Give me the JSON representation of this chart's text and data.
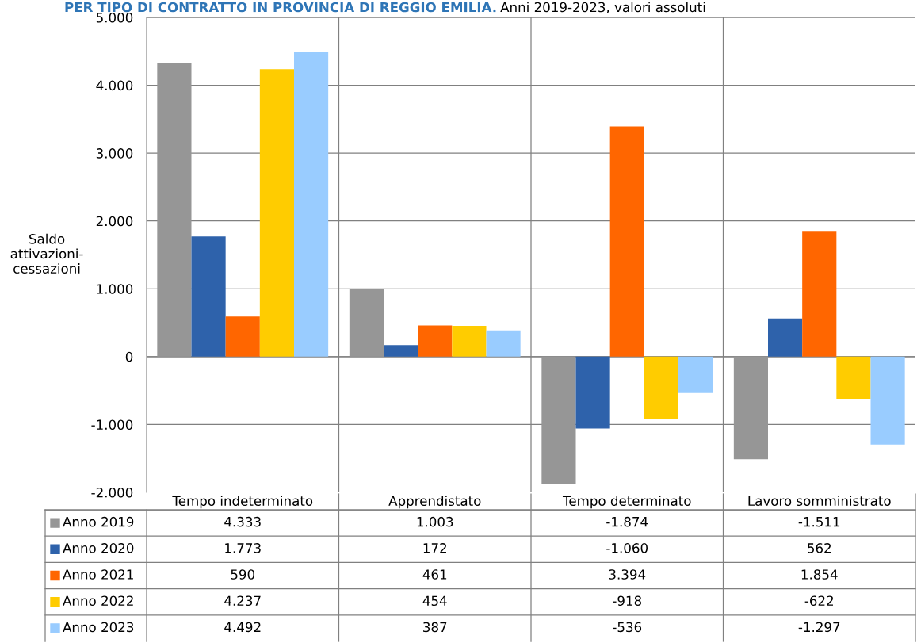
{
  "chart_data": {
    "type": "bar",
    "title": "PER TIPO DI CONTRATTO IN PROVINCIA DI REGGIO EMILIA.",
    "subtitle": "Anni 2019-2023, valori assoluti",
    "ylabel": "Saldo\nattivazioni-\ncessazioni",
    "categories": [
      "Tempo indeterminato",
      "Apprendistato",
      "Tempo determinato",
      "Lavoro somministrato"
    ],
    "series": [
      {
        "name": "Anno 2019",
        "color": "#969696",
        "values": [
          4333,
          1003,
          -1874,
          -1511
        ],
        "value_labels": [
          "4.333",
          "1.003",
          "-1.874",
          "-1.511"
        ]
      },
      {
        "name": "Anno 2020",
        "color": "#2e62ab",
        "values": [
          1773,
          172,
          -1060,
          562
        ],
        "value_labels": [
          "1.773",
          "172",
          "-1.060",
          "562"
        ]
      },
      {
        "name": "Anno 2021",
        "color": "#ff6600",
        "values": [
          590,
          461,
          3394,
          1854
        ],
        "value_labels": [
          "590",
          "461",
          "3.394",
          "1.854"
        ]
      },
      {
        "name": "Anno 2022",
        "color": "#ffcc00",
        "values": [
          4237,
          454,
          -918,
          -622
        ],
        "value_labels": [
          "4.237",
          "454",
          "-918",
          "-622"
        ]
      },
      {
        "name": "Anno 2023",
        "color": "#99ccff",
        "values": [
          4492,
          387,
          -536,
          -1297
        ],
        "value_labels": [
          "4.492",
          "387",
          "-536",
          "-1.297"
        ]
      }
    ],
    "ylim": [
      -2000,
      5000
    ],
    "yticks": [
      {
        "value": -2000,
        "label": "-2.000"
      },
      {
        "value": -1000,
        "label": "-1.000"
      },
      0,
      {
        "value": 1000,
        "label": "1.000"
      },
      {
        "value": 2000,
        "label": "2.000"
      },
      {
        "value": 3000,
        "label": "3.000"
      },
      {
        "value": 4000,
        "label": "4.000"
      },
      {
        "value": 5000,
        "label": "5.000"
      }
    ],
    "grid": true,
    "legend": "bottom left"
  }
}
